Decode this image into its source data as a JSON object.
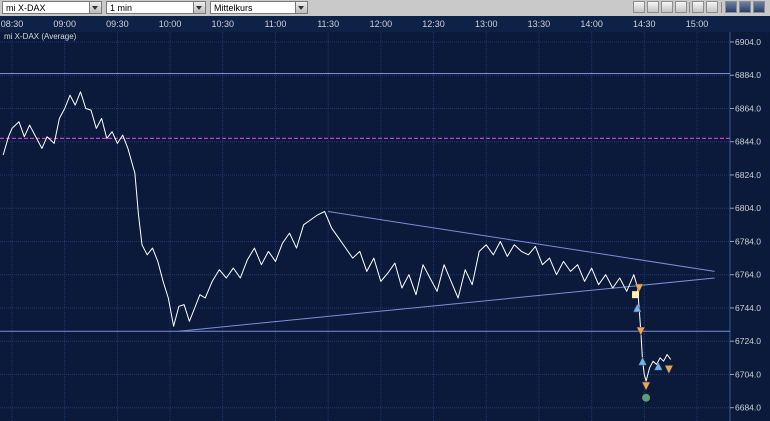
{
  "toolbar": {
    "instrument": "mi X-DAX",
    "interval": "1 min",
    "price_type": "Mittelkurs"
  },
  "chart_title": "mi X-DAX (Average)",
  "colors": {
    "background": "#0b1a3a",
    "grid": "#1e3a6e",
    "price_line": "#ffffff",
    "trend_line": "#7b8fd6",
    "dashed_level": "#c43fc4"
  },
  "chart_data": {
    "type": "line",
    "title": "mi X-DAX (Average)",
    "x_ticks": [
      "08:30",
      "09:00",
      "09:30",
      "10:00",
      "10:30",
      "11:00",
      "11:30",
      "12:00",
      "12:30",
      "13:00",
      "13:30",
      "14:00",
      "14:30",
      "15:00"
    ],
    "y_ticks": [
      "6904.0",
      "6884.0",
      "6864.0",
      "6844.0",
      "6824.0",
      "6804.0",
      "6784.0",
      "6764.0",
      "6744.0",
      "6724.0",
      "6704.0",
      "6684.0"
    ],
    "ylim": [
      6676,
      6910
    ],
    "grid": true,
    "series": [
      {
        "values_xy": [
          [
            "08:25",
            6836
          ],
          [
            "08:28",
            6847
          ],
          [
            "08:30",
            6852
          ],
          [
            "08:34",
            6856
          ],
          [
            "08:37",
            6847
          ],
          [
            "08:40",
            6854
          ],
          [
            "08:44",
            6846
          ],
          [
            "08:47",
            6840
          ],
          [
            "08:50",
            6847
          ],
          [
            "08:54",
            6843
          ],
          [
            "08:57",
            6858
          ],
          [
            "09:00",
            6864
          ],
          [
            "09:03",
            6872
          ],
          [
            "09:06",
            6866
          ],
          [
            "09:09",
            6874
          ],
          [
            "09:12",
            6864
          ],
          [
            "09:15",
            6863
          ],
          [
            "09:18",
            6852
          ],
          [
            "09:21",
            6858
          ],
          [
            "09:24",
            6846
          ],
          [
            "09:27",
            6850
          ],
          [
            "09:30",
            6843
          ],
          [
            "09:33",
            6848
          ],
          [
            "09:36",
            6840
          ],
          [
            "09:40",
            6825
          ],
          [
            "09:42",
            6800
          ],
          [
            "09:44",
            6782
          ],
          [
            "09:47",
            6776
          ],
          [
            "09:50",
            6780
          ],
          [
            "09:53",
            6772
          ],
          [
            "09:56",
            6760
          ],
          [
            "09:59",
            6750
          ],
          [
            "10:02",
            6733
          ],
          [
            "10:05",
            6745
          ],
          [
            "10:08",
            6746
          ],
          [
            "10:11",
            6736
          ],
          [
            "10:14",
            6744
          ],
          [
            "10:17",
            6752
          ],
          [
            "10:20",
            6750
          ],
          [
            "10:24",
            6760
          ],
          [
            "10:28",
            6767
          ],
          [
            "10:32",
            6762
          ],
          [
            "10:36",
            6768
          ],
          [
            "10:40",
            6762
          ],
          [
            "10:44",
            6773
          ],
          [
            "10:48",
            6780
          ],
          [
            "10:52",
            6770
          ],
          [
            "10:56",
            6778
          ],
          [
            "11:00",
            6772
          ],
          [
            "11:04",
            6783
          ],
          [
            "11:08",
            6789
          ],
          [
            "11:12",
            6780
          ],
          [
            "11:16",
            6794
          ],
          [
            "11:20",
            6797
          ],
          [
            "11:24",
            6800
          ],
          [
            "11:28",
            6802
          ],
          [
            "11:32",
            6792
          ],
          [
            "11:36",
            6786
          ],
          [
            "11:40",
            6780
          ],
          [
            "11:44",
            6774
          ],
          [
            "11:48",
            6778
          ],
          [
            "11:52",
            6766
          ],
          [
            "11:56",
            6774
          ],
          [
            "12:00",
            6760
          ],
          [
            "12:04",
            6765
          ],
          [
            "12:08",
            6771
          ],
          [
            "12:12",
            6756
          ],
          [
            "12:16",
            6764
          ],
          [
            "12:20",
            6752
          ],
          [
            "12:24",
            6770
          ],
          [
            "12:28",
            6762
          ],
          [
            "12:32",
            6754
          ],
          [
            "12:36",
            6770
          ],
          [
            "12:40",
            6760
          ],
          [
            "12:44",
            6750
          ],
          [
            "12:48",
            6767
          ],
          [
            "12:52",
            6758
          ],
          [
            "12:56",
            6778
          ],
          [
            "13:00",
            6782
          ],
          [
            "13:04",
            6776
          ],
          [
            "13:08",
            6784
          ],
          [
            "13:12",
            6775
          ],
          [
            "13:16",
            6782
          ],
          [
            "13:20",
            6778
          ],
          [
            "13:24",
            6776
          ],
          [
            "13:28",
            6781
          ],
          [
            "13:32",
            6770
          ],
          [
            "13:36",
            6774
          ],
          [
            "13:40",
            6764
          ],
          [
            "13:44",
            6772
          ],
          [
            "13:48",
            6766
          ],
          [
            "13:52",
            6770
          ],
          [
            "13:56",
            6760
          ],
          [
            "14:00",
            6768
          ],
          [
            "14:04",
            6758
          ],
          [
            "14:08",
            6764
          ],
          [
            "14:12",
            6756
          ],
          [
            "14:16",
            6762
          ],
          [
            "14:20",
            6754
          ],
          [
            "14:24",
            6764
          ],
          [
            "14:26",
            6757
          ],
          [
            "14:27",
            6745
          ],
          [
            "14:28",
            6730
          ],
          [
            "14:29",
            6712
          ],
          [
            "14:30",
            6704
          ],
          [
            "14:31",
            6700
          ],
          [
            "14:32",
            6704
          ],
          [
            "14:33",
            6708
          ],
          [
            "14:35",
            6712
          ],
          [
            "14:37",
            6710
          ],
          [
            "14:39",
            6714
          ],
          [
            "14:41",
            6712
          ],
          [
            "14:43",
            6716
          ],
          [
            "14:45",
            6713
          ]
        ]
      }
    ],
    "horizontal_lines": [
      6885,
      6730
    ],
    "dashed_line": 6846,
    "trendlines": [
      {
        "from": [
          "11:30",
          6802
        ],
        "to": [
          "15:10",
          6766
        ]
      },
      {
        "from": [
          "10:05",
          6730
        ],
        "to": [
          "15:10",
          6762
        ]
      }
    ],
    "markers": [
      {
        "shape": "triangle-down",
        "color": "#e8a85c",
        "x": "14:27",
        "y": 6756
      },
      {
        "shape": "square",
        "color": "#fff2a8",
        "x": "14:25",
        "y": 6752
      },
      {
        "shape": "triangle-up",
        "color": "#7ab0e0",
        "x": "14:26",
        "y": 6744
      },
      {
        "shape": "triangle-down",
        "color": "#e8a85c",
        "x": "14:28",
        "y": 6730
      },
      {
        "shape": "triangle-up",
        "color": "#7ab0e0",
        "x": "14:29",
        "y": 6712
      },
      {
        "shape": "triangle-down",
        "color": "#e8a85c",
        "x": "14:31",
        "y": 6697
      },
      {
        "shape": "circle",
        "color": "#5aa06e",
        "x": "14:31",
        "y": 6690
      },
      {
        "shape": "triangle-up",
        "color": "#7ab0e0",
        "x": "14:38",
        "y": 6709
      },
      {
        "shape": "triangle-down",
        "color": "#e8a85c",
        "x": "14:44",
        "y": 6707
      }
    ]
  }
}
